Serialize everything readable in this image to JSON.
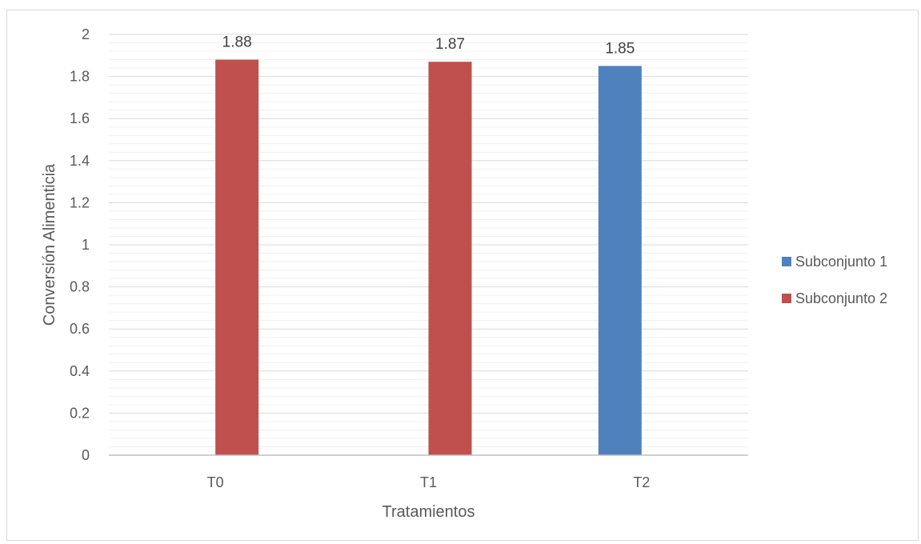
{
  "chart_data": {
    "type": "bar",
    "title": "",
    "xlabel": "Tratamientos",
    "ylabel": "Conversión Alimenticia",
    "categories": [
      "T0",
      "T1",
      "T2"
    ],
    "series": [
      {
        "name": "Subconjunto 1",
        "color": "#4f81bd",
        "values": [
          null,
          null,
          1.85
        ]
      },
      {
        "name": "Subconjunto 2",
        "color": "#c0504d",
        "values": [
          1.88,
          1.87,
          null
        ]
      }
    ],
    "data_labels": [
      "1.88",
      "1.87",
      "1.85"
    ],
    "ylim": [
      0,
      2
    ],
    "y_major_step": 0.2,
    "y_tick_labels": [
      "0",
      "0.2",
      "0.4",
      "0.6",
      "0.8",
      "1",
      "1.2",
      "1.4",
      "1.6",
      "1.8",
      "2"
    ],
    "grid": true,
    "minor_grid": true,
    "legend_position": "right"
  }
}
